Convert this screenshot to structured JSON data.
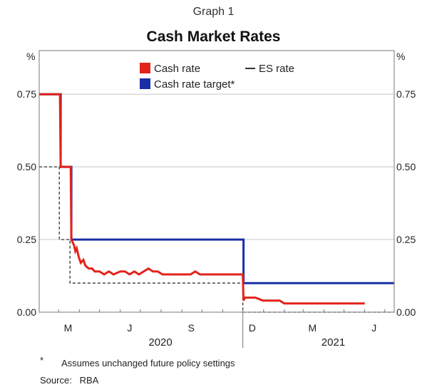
{
  "header": {
    "graph_label": "Graph 1",
    "title": "Cash Market Rates"
  },
  "footer": {
    "footnote_marker": "*",
    "footnote_text": "Assumes unchanged future policy settings",
    "source_label": "Source:",
    "source_value": "RBA"
  },
  "chart_data": {
    "type": "line",
    "title": "Cash Market Rates",
    "ylabel_left": "%",
    "ylabel_right": "%",
    "ylim": [
      0,
      0.9
    ],
    "yticks": [
      "0.00",
      "0.25",
      "0.50",
      "0.75"
    ],
    "ytick_values": [
      0,
      0.25,
      0.5,
      0.75
    ],
    "xlim": [
      "2020-02-01",
      "2021-07-15"
    ],
    "month_ticks": [
      "M",
      "J",
      "S",
      "D",
      "M",
      "J"
    ],
    "month_tick_dates": [
      "2020-03-15",
      "2020-06-15",
      "2020-09-15",
      "2020-12-15",
      "2021-03-15",
      "2021-06-15"
    ],
    "year_labels": [
      "2020",
      "2021"
    ],
    "year_label_dates": [
      "2020-07-31",
      "2021-04-15"
    ],
    "year_separator_date": "2020-12-01",
    "grid": true,
    "legend_position": "top-center",
    "series": [
      {
        "name": "Cash rate",
        "color": "#e2231a",
        "style": "solid",
        "points": [
          [
            "2020-02-01",
            0.75
          ],
          [
            "2020-03-03",
            0.75
          ],
          [
            "2020-03-04",
            0.5
          ],
          [
            "2020-03-19",
            0.5
          ],
          [
            "2020-03-20",
            0.25
          ],
          [
            "2020-03-24",
            0.23
          ],
          [
            "2020-03-26",
            0.21
          ],
          [
            "2020-03-28",
            0.22
          ],
          [
            "2020-03-31",
            0.19
          ],
          [
            "2020-04-03",
            0.17
          ],
          [
            "2020-04-07",
            0.18
          ],
          [
            "2020-04-10",
            0.16
          ],
          [
            "2020-04-15",
            0.15
          ],
          [
            "2020-04-20",
            0.15
          ],
          [
            "2020-04-24",
            0.14
          ],
          [
            "2020-05-01",
            0.14
          ],
          [
            "2020-05-08",
            0.13
          ],
          [
            "2020-05-15",
            0.14
          ],
          [
            "2020-05-22",
            0.13
          ],
          [
            "2020-06-01",
            0.14
          ],
          [
            "2020-06-08",
            0.14
          ],
          [
            "2020-06-15",
            0.13
          ],
          [
            "2020-06-22",
            0.14
          ],
          [
            "2020-06-29",
            0.13
          ],
          [
            "2020-07-06",
            0.14
          ],
          [
            "2020-07-13",
            0.15
          ],
          [
            "2020-07-20",
            0.14
          ],
          [
            "2020-07-27",
            0.14
          ],
          [
            "2020-08-03",
            0.13
          ],
          [
            "2020-08-17",
            0.13
          ],
          [
            "2020-08-31",
            0.13
          ],
          [
            "2020-09-14",
            0.13
          ],
          [
            "2020-09-21",
            0.14
          ],
          [
            "2020-09-28",
            0.13
          ],
          [
            "2020-10-15",
            0.13
          ],
          [
            "2020-11-01",
            0.13
          ],
          [
            "2020-11-20",
            0.13
          ],
          [
            "2020-12-01",
            0.13
          ],
          [
            "2020-12-02",
            0.04
          ],
          [
            "2020-12-04",
            0.05
          ],
          [
            "2020-12-20",
            0.05
          ],
          [
            "2020-12-31",
            0.04
          ],
          [
            "2021-01-15",
            0.04
          ],
          [
            "2021-01-25",
            0.04
          ],
          [
            "2021-02-01",
            0.03
          ],
          [
            "2021-03-01",
            0.03
          ],
          [
            "2021-04-01",
            0.03
          ],
          [
            "2021-05-01",
            0.03
          ],
          [
            "2021-06-01",
            0.03
          ]
        ]
      },
      {
        "name": "Cash rate target*",
        "color": "#1a2fa6",
        "style": "solid",
        "points": [
          [
            "2020-02-01",
            0.75
          ],
          [
            "2020-03-04",
            0.75
          ],
          [
            "2020-03-04",
            0.5
          ],
          [
            "2020-03-20",
            0.5
          ],
          [
            "2020-03-20",
            0.25
          ],
          [
            "2020-12-02",
            0.25
          ],
          [
            "2020-12-02",
            0.1
          ],
          [
            "2021-07-15",
            0.1
          ]
        ]
      },
      {
        "name": "ES rate",
        "color": "#333333",
        "style": "dashed",
        "points": [
          [
            "2020-02-01",
            0.5
          ],
          [
            "2020-03-02",
            0.5
          ],
          [
            "2020-03-02",
            0.25
          ],
          [
            "2020-03-18",
            0.25
          ],
          [
            "2020-03-18",
            0.1
          ],
          [
            "2020-12-01",
            0.1
          ],
          [
            "2020-12-01",
            0.0
          ],
          [
            "2021-07-15",
            0.0
          ]
        ]
      }
    ]
  }
}
